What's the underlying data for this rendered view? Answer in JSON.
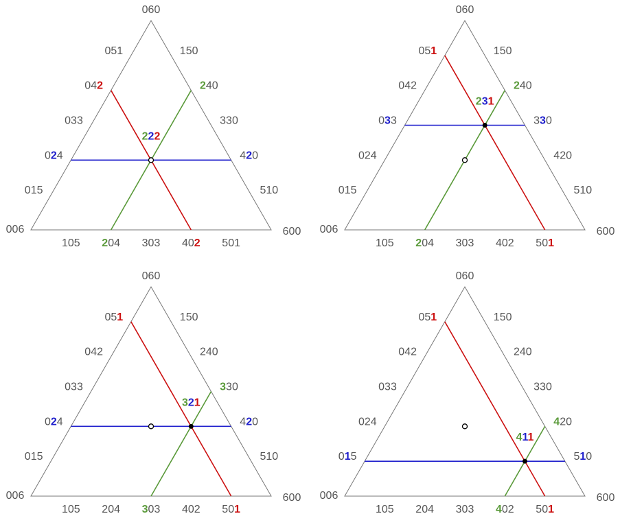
{
  "digit_colors": [
    "#5a9a3a",
    "#1f1fcc",
    "#cc1111"
  ],
  "panels": [
    {
      "point": {
        "text": "222",
        "color_digits": [
          0,
          1,
          2
        ]
      },
      "labels": [
        {
          "text": "060"
        },
        {
          "text": "051"
        },
        {
          "text": "042",
          "color_digits": [
            2
          ]
        },
        {
          "text": "033"
        },
        {
          "text": "024",
          "color_digits": [
            1
          ]
        },
        {
          "text": "015"
        },
        {
          "text": "006"
        },
        {
          "text": "150"
        },
        {
          "text": "240",
          "color_digits": [
            0
          ]
        },
        {
          "text": "330"
        },
        {
          "text": "420",
          "color_digits": [
            1
          ]
        },
        {
          "text": "510"
        },
        {
          "text": "600"
        },
        {
          "text": "105"
        },
        {
          "text": "204",
          "color_digits": [
            0
          ]
        },
        {
          "text": "303"
        },
        {
          "text": "402",
          "color_digits": [
            2
          ]
        },
        {
          "text": "501"
        }
      ]
    },
    {
      "point": {
        "text": "231",
        "color_digits": [
          0,
          1,
          2
        ]
      },
      "labels": [
        {
          "text": "060"
        },
        {
          "text": "051",
          "color_digits": [
            2
          ]
        },
        {
          "text": "042"
        },
        {
          "text": "033",
          "color_digits": [
            1
          ]
        },
        {
          "text": "024"
        },
        {
          "text": "015"
        },
        {
          "text": "006"
        },
        {
          "text": "150"
        },
        {
          "text": "240",
          "color_digits": [
            0
          ]
        },
        {
          "text": "330",
          "color_digits": [
            1
          ]
        },
        {
          "text": "420"
        },
        {
          "text": "510"
        },
        {
          "text": "600"
        },
        {
          "text": "105"
        },
        {
          "text": "204",
          "color_digits": [
            0
          ]
        },
        {
          "text": "303"
        },
        {
          "text": "402"
        },
        {
          "text": "501",
          "color_digits": [
            2
          ]
        }
      ]
    },
    {
      "point": {
        "text": "321",
        "color_digits": [
          0,
          1,
          2
        ]
      },
      "labels": [
        {
          "text": "060"
        },
        {
          "text": "051",
          "color_digits": [
            2
          ]
        },
        {
          "text": "042"
        },
        {
          "text": "033"
        },
        {
          "text": "024",
          "color_digits": [
            1
          ]
        },
        {
          "text": "015"
        },
        {
          "text": "006"
        },
        {
          "text": "150"
        },
        {
          "text": "240"
        },
        {
          "text": "330",
          "color_digits": [
            0
          ]
        },
        {
          "text": "420",
          "color_digits": [
            1
          ]
        },
        {
          "text": "510"
        },
        {
          "text": "600"
        },
        {
          "text": "105"
        },
        {
          "text": "204"
        },
        {
          "text": "303",
          "color_digits": [
            0
          ]
        },
        {
          "text": "402"
        },
        {
          "text": "501",
          "color_digits": [
            2
          ]
        }
      ]
    },
    {
      "point": {
        "text": "411",
        "color_digits": [
          0,
          1,
          2
        ]
      },
      "labels": [
        {
          "text": "060"
        },
        {
          "text": "051",
          "color_digits": [
            2
          ]
        },
        {
          "text": "042"
        },
        {
          "text": "033"
        },
        {
          "text": "024"
        },
        {
          "text": "015",
          "color_digits": [
            1
          ]
        },
        {
          "text": "006"
        },
        {
          "text": "150"
        },
        {
          "text": "240"
        },
        {
          "text": "330"
        },
        {
          "text": "420",
          "color_digits": [
            0
          ]
        },
        {
          "text": "510",
          "color_digits": [
            1
          ]
        },
        {
          "text": "600"
        },
        {
          "text": "105"
        },
        {
          "text": "204"
        },
        {
          "text": "303"
        },
        {
          "text": "402",
          "color_digits": [
            0
          ]
        },
        {
          "text": "501",
          "color_digits": [
            2
          ]
        }
      ]
    }
  ]
}
